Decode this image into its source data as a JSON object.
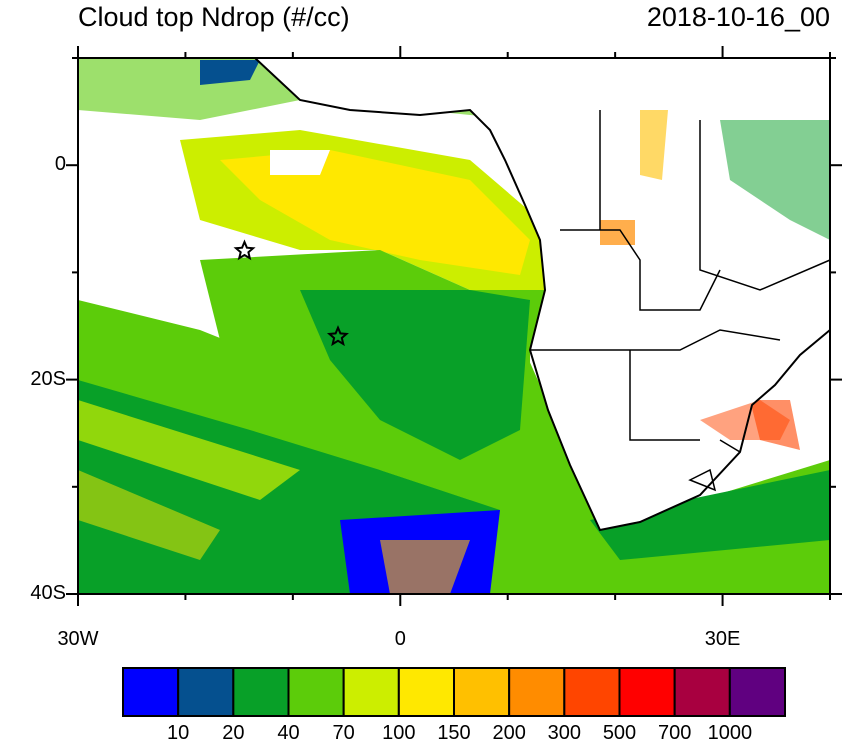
{
  "title": "Cloud top Ndrop (#/cc)",
  "date": "2018-10-16_00",
  "lon_labels": [
    {
      "lon": -30,
      "text": "30W"
    },
    {
      "lon": 0,
      "text": "0"
    },
    {
      "lon": 30,
      "text": "30E"
    }
  ],
  "lat_labels": [
    {
      "lat": 0,
      "text": "0"
    },
    {
      "lat": -20,
      "text": "20S"
    },
    {
      "lat": -40,
      "text": "40S"
    }
  ],
  "extent": {
    "lon": [
      -30,
      40
    ],
    "lat": [
      -40,
      10
    ]
  },
  "markers": [
    {
      "type": "star",
      "lon": -14.5,
      "lat": -8
    },
    {
      "type": "star",
      "lon": -5.8,
      "lat": -16
    }
  ],
  "colorbar": {
    "colors": [
      "#0000ff",
      "#05508f",
      "#08a028",
      "#5ccc0a",
      "#ccee00",
      "#ffe800",
      "#ffc000",
      "#ff8c00",
      "#ff4500",
      "#ff0000",
      "#a80040",
      "#600080"
    ],
    "labels": [
      "10",
      "20",
      "40",
      "70",
      "100",
      "150",
      "200",
      "300",
      "500",
      "700",
      "1000"
    ]
  }
}
